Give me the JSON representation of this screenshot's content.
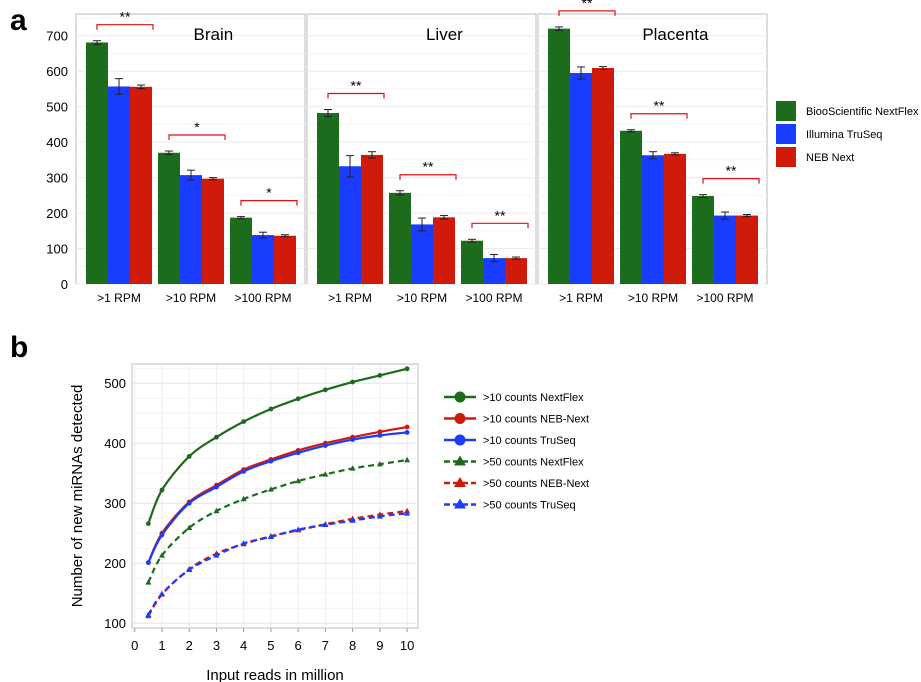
{
  "panel_labels": {
    "a": "a",
    "b": "b"
  },
  "colors": {
    "nextflex": "#1d6b1d",
    "truseq": "#1a3cff",
    "nebnext": "#d01a0a",
    "sig": "#e01010"
  },
  "chart_data": [
    {
      "type": "bar",
      "panel": "a",
      "facets": [
        "Brain",
        "Liver",
        "Placenta"
      ],
      "categories": [
        ">1 RPM",
        ">10 RPM",
        ">100 RPM"
      ],
      "ylim": [
        0,
        750
      ],
      "yticks": [
        0,
        100,
        200,
        300,
        400,
        500,
        600,
        700
      ],
      "grid": true,
      "legend": "right",
      "series": [
        {
          "name": "BiooScientific NextFlex",
          "values": {
            "Brain": [
              681,
              370,
              187
            ],
            "Liver": [
              482,
              257,
              122
            ],
            "Placenta": [
              720,
              432,
              248
            ]
          },
          "errors": {
            "Brain": [
              5,
              5,
              3
            ],
            "Liver": [
              10,
              6,
              4
            ],
            "Placenta": [
              5,
              3,
              4
            ]
          }
        },
        {
          "name": "Illumina TruSeq",
          "values": {
            "Brain": [
              557,
              307,
              138
            ],
            "Liver": [
              332,
              168,
              73
            ],
            "Placenta": [
              595,
              363,
              193
            ]
          },
          "errors": {
            "Brain": [
              22,
              14,
              8
            ],
            "Liver": [
              30,
              18,
              10
            ],
            "Placenta": [
              17,
              10,
              10
            ]
          }
        },
        {
          "name": "NEB Next",
          "values": {
            "Brain": [
              556,
              297,
              136
            ],
            "Liver": [
              364,
              188,
              73
            ],
            "Placenta": [
              609,
              367,
              193
            ]
          },
          "errors": {
            "Brain": [
              5,
              3,
              3
            ],
            "Liver": [
              9,
              5,
              3
            ],
            "Placenta": [
              4,
              3,
              3
            ]
          }
        }
      ],
      "significance": {
        "Brain": [
          "**",
          "*",
          "*"
        ],
        "Liver": [
          "**",
          "**",
          "**"
        ],
        "Placenta": [
          "**",
          "**",
          "**"
        ]
      }
    },
    {
      "type": "line",
      "panel": "b",
      "xlabel": "Input reads in million",
      "ylabel": "Number of new miRNAs detected",
      "xticks": [
        0,
        1,
        2,
        3,
        4,
        5,
        6,
        7,
        8,
        9,
        10
      ],
      "yticks": [
        100,
        200,
        300,
        400,
        500
      ],
      "xlim": [
        -0.1,
        10.4
      ],
      "ylim": [
        92,
        532
      ],
      "grid": true,
      "legend": "right",
      "x": [
        0.5,
        1,
        2,
        3,
        4,
        5,
        6,
        7,
        8,
        9,
        10
      ],
      "series": [
        {
          "name": ">10 counts NextFlex",
          "marker": "circle",
          "dash": "solid",
          "color": "#1d6b1d",
          "values": [
            266,
            322,
            378,
            410,
            436,
            457,
            474,
            489,
            502,
            513,
            524
          ]
        },
        {
          "name": ">10 counts NEB-Next",
          "marker": "circle",
          "dash": "solid",
          "color": "#d01a0a",
          "values": [
            201,
            250,
            302,
            330,
            356,
            373,
            388,
            400,
            410,
            419,
            427
          ]
        },
        {
          "name": ">10 counts TruSeq",
          "marker": "circle",
          "dash": "solid",
          "color": "#1a3cff",
          "values": [
            201,
            247,
            300,
            327,
            353,
            370,
            384,
            396,
            406,
            413,
            418
          ]
        },
        {
          "name": ">50 counts NextFlex",
          "marker": "triangle",
          "dash": "dashed",
          "color": "#1d6b1d",
          "values": [
            168,
            213,
            259,
            287,
            307,
            323,
            337,
            348,
            358,
            365,
            372
          ]
        },
        {
          "name": ">50 counts NEB-Next",
          "marker": "triangle",
          "dash": "dashed",
          "color": "#d01a0a",
          "values": [
            112,
            148,
            190,
            216,
            232,
            245,
            255,
            265,
            274,
            281,
            287
          ]
        },
        {
          "name": ">50 counts TruSeq",
          "marker": "triangle",
          "dash": "dashed",
          "color": "#1a3cff",
          "values": [
            114,
            149,
            189,
            213,
            233,
            244,
            256,
            264,
            271,
            278,
            283
          ]
        }
      ]
    }
  ]
}
